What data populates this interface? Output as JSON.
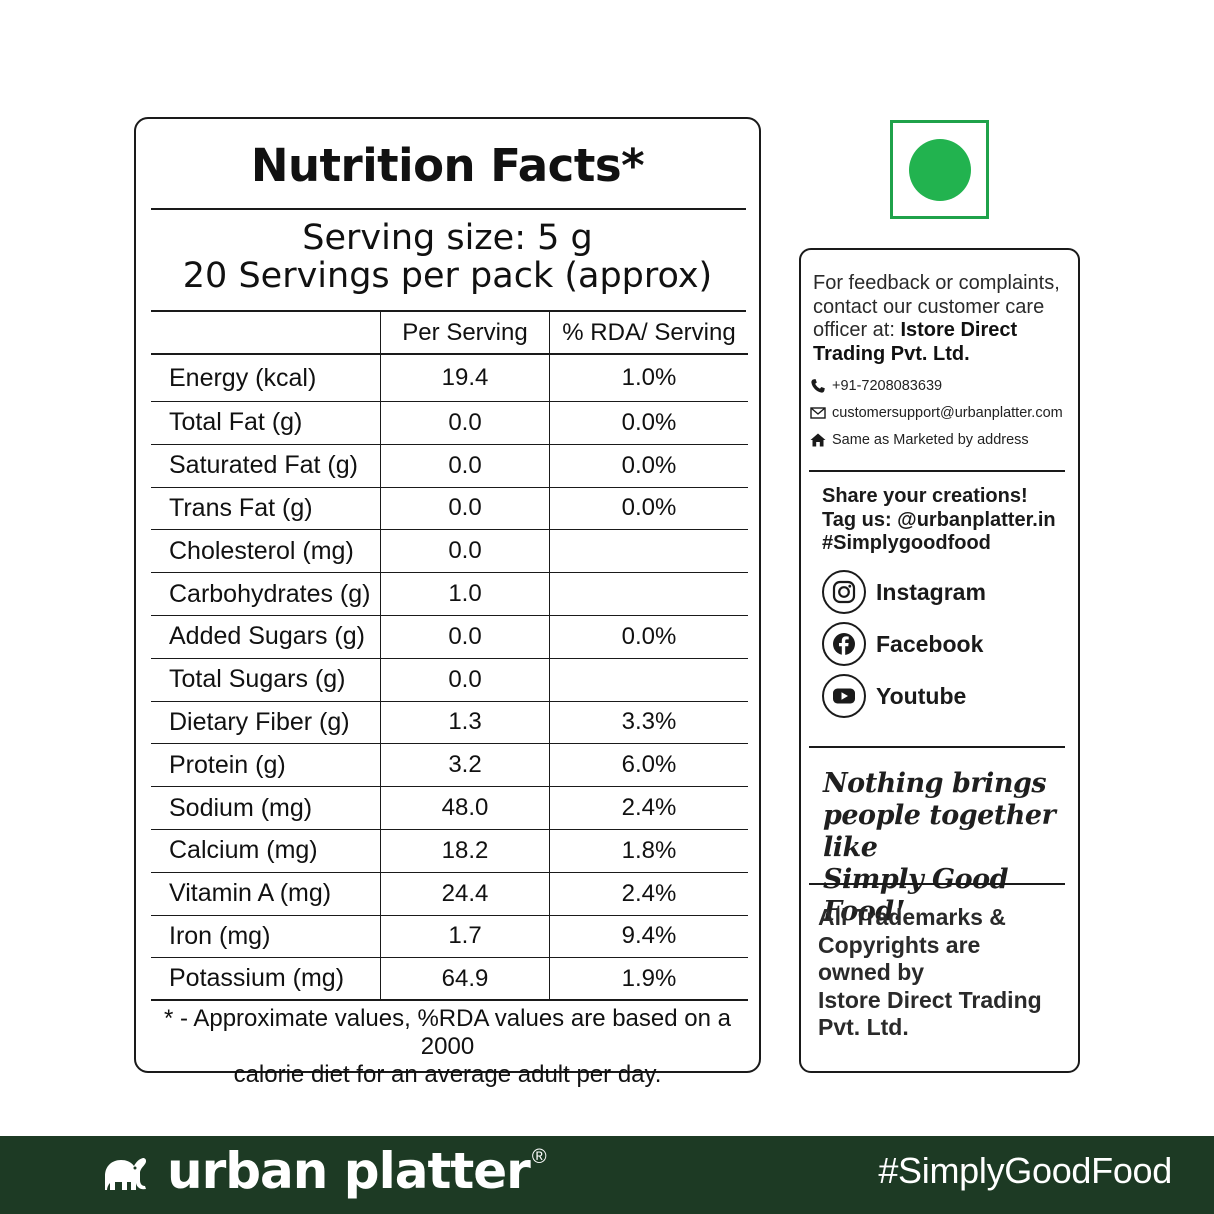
{
  "nutrition": {
    "title": "Nutrition Facts*",
    "serving_size": "Serving size: 5 g",
    "servings_per_pack": "20 Servings per pack (approx)",
    "columns": [
      "",
      "Per Serving",
      "% RDA/ Serving"
    ],
    "rows": [
      [
        "Energy (kcal)",
        "19.4",
        "1.0%"
      ],
      [
        "Total Fat (g)",
        "0.0",
        "0.0%"
      ],
      [
        "Saturated Fat (g)",
        "0.0",
        "0.0%"
      ],
      [
        "Trans Fat (g)",
        "0.0",
        "0.0%"
      ],
      [
        "Cholesterol (mg)",
        "0.0",
        ""
      ],
      [
        "Carbohydrates (g)",
        "1.0",
        ""
      ],
      [
        "Added Sugars (g)",
        "0.0",
        "0.0%"
      ],
      [
        "Total Sugars (g)",
        "0.0",
        ""
      ],
      [
        "Dietary Fiber (g)",
        "1.3",
        "3.3%"
      ],
      [
        "Protein (g)",
        "3.2",
        "6.0%"
      ],
      [
        "Sodium (mg)",
        "48.0",
        "2.4%"
      ],
      [
        "Calcium (mg)",
        "18.2",
        "1.8%"
      ],
      [
        "Vitamin A (mg)",
        "24.4",
        "2.4%"
      ],
      [
        "Iron (mg)",
        "1.7",
        "9.4%"
      ],
      [
        "Potassium (mg)",
        "64.9",
        "1.9%"
      ]
    ],
    "footnote_line1": "* - Approximate values, %RDA values are based on a 2000",
    "footnote_line2": "calorie diet for an average adult per day."
  },
  "veg_mark": {
    "color": "#22b34f"
  },
  "info": {
    "feedback_line1": "For feedback or complaints,",
    "feedback_line2": "contact our customer care",
    "feedback_line3_prefix": "officer at: ",
    "feedback_company_1": "Istore Direct",
    "feedback_company_2": "Trading Pvt. Ltd.",
    "phone": "+91-7208083639",
    "email": "customersupport@urbanplatter.com",
    "address": "Same as Marketed by address",
    "share_line1": "Share your creations!",
    "share_line2": "Tag us: @urbanplatter.in",
    "share_line3": "#Simplygoodfood",
    "social": [
      {
        "label": "Instagram",
        "icon": "instagram-icon"
      },
      {
        "label": "Facebook",
        "icon": "facebook-icon"
      },
      {
        "label": "Youtube",
        "icon": "youtube-icon"
      }
    ],
    "slogan_line1": "Nothing brings",
    "slogan_line2": "people together like",
    "slogan_line3": "Simply Good Food!",
    "trademark_line1": "All Trademarks &",
    "trademark_line2": "Copyrights are",
    "trademark_line3": "owned by",
    "trademark_line4": "Istore Direct Trading",
    "trademark_line5": "Pvt. Ltd."
  },
  "footer": {
    "brand": "urban platter",
    "registered": "®",
    "hashtag": "#SimplyGoodFood",
    "background": "#1d3a24"
  }
}
